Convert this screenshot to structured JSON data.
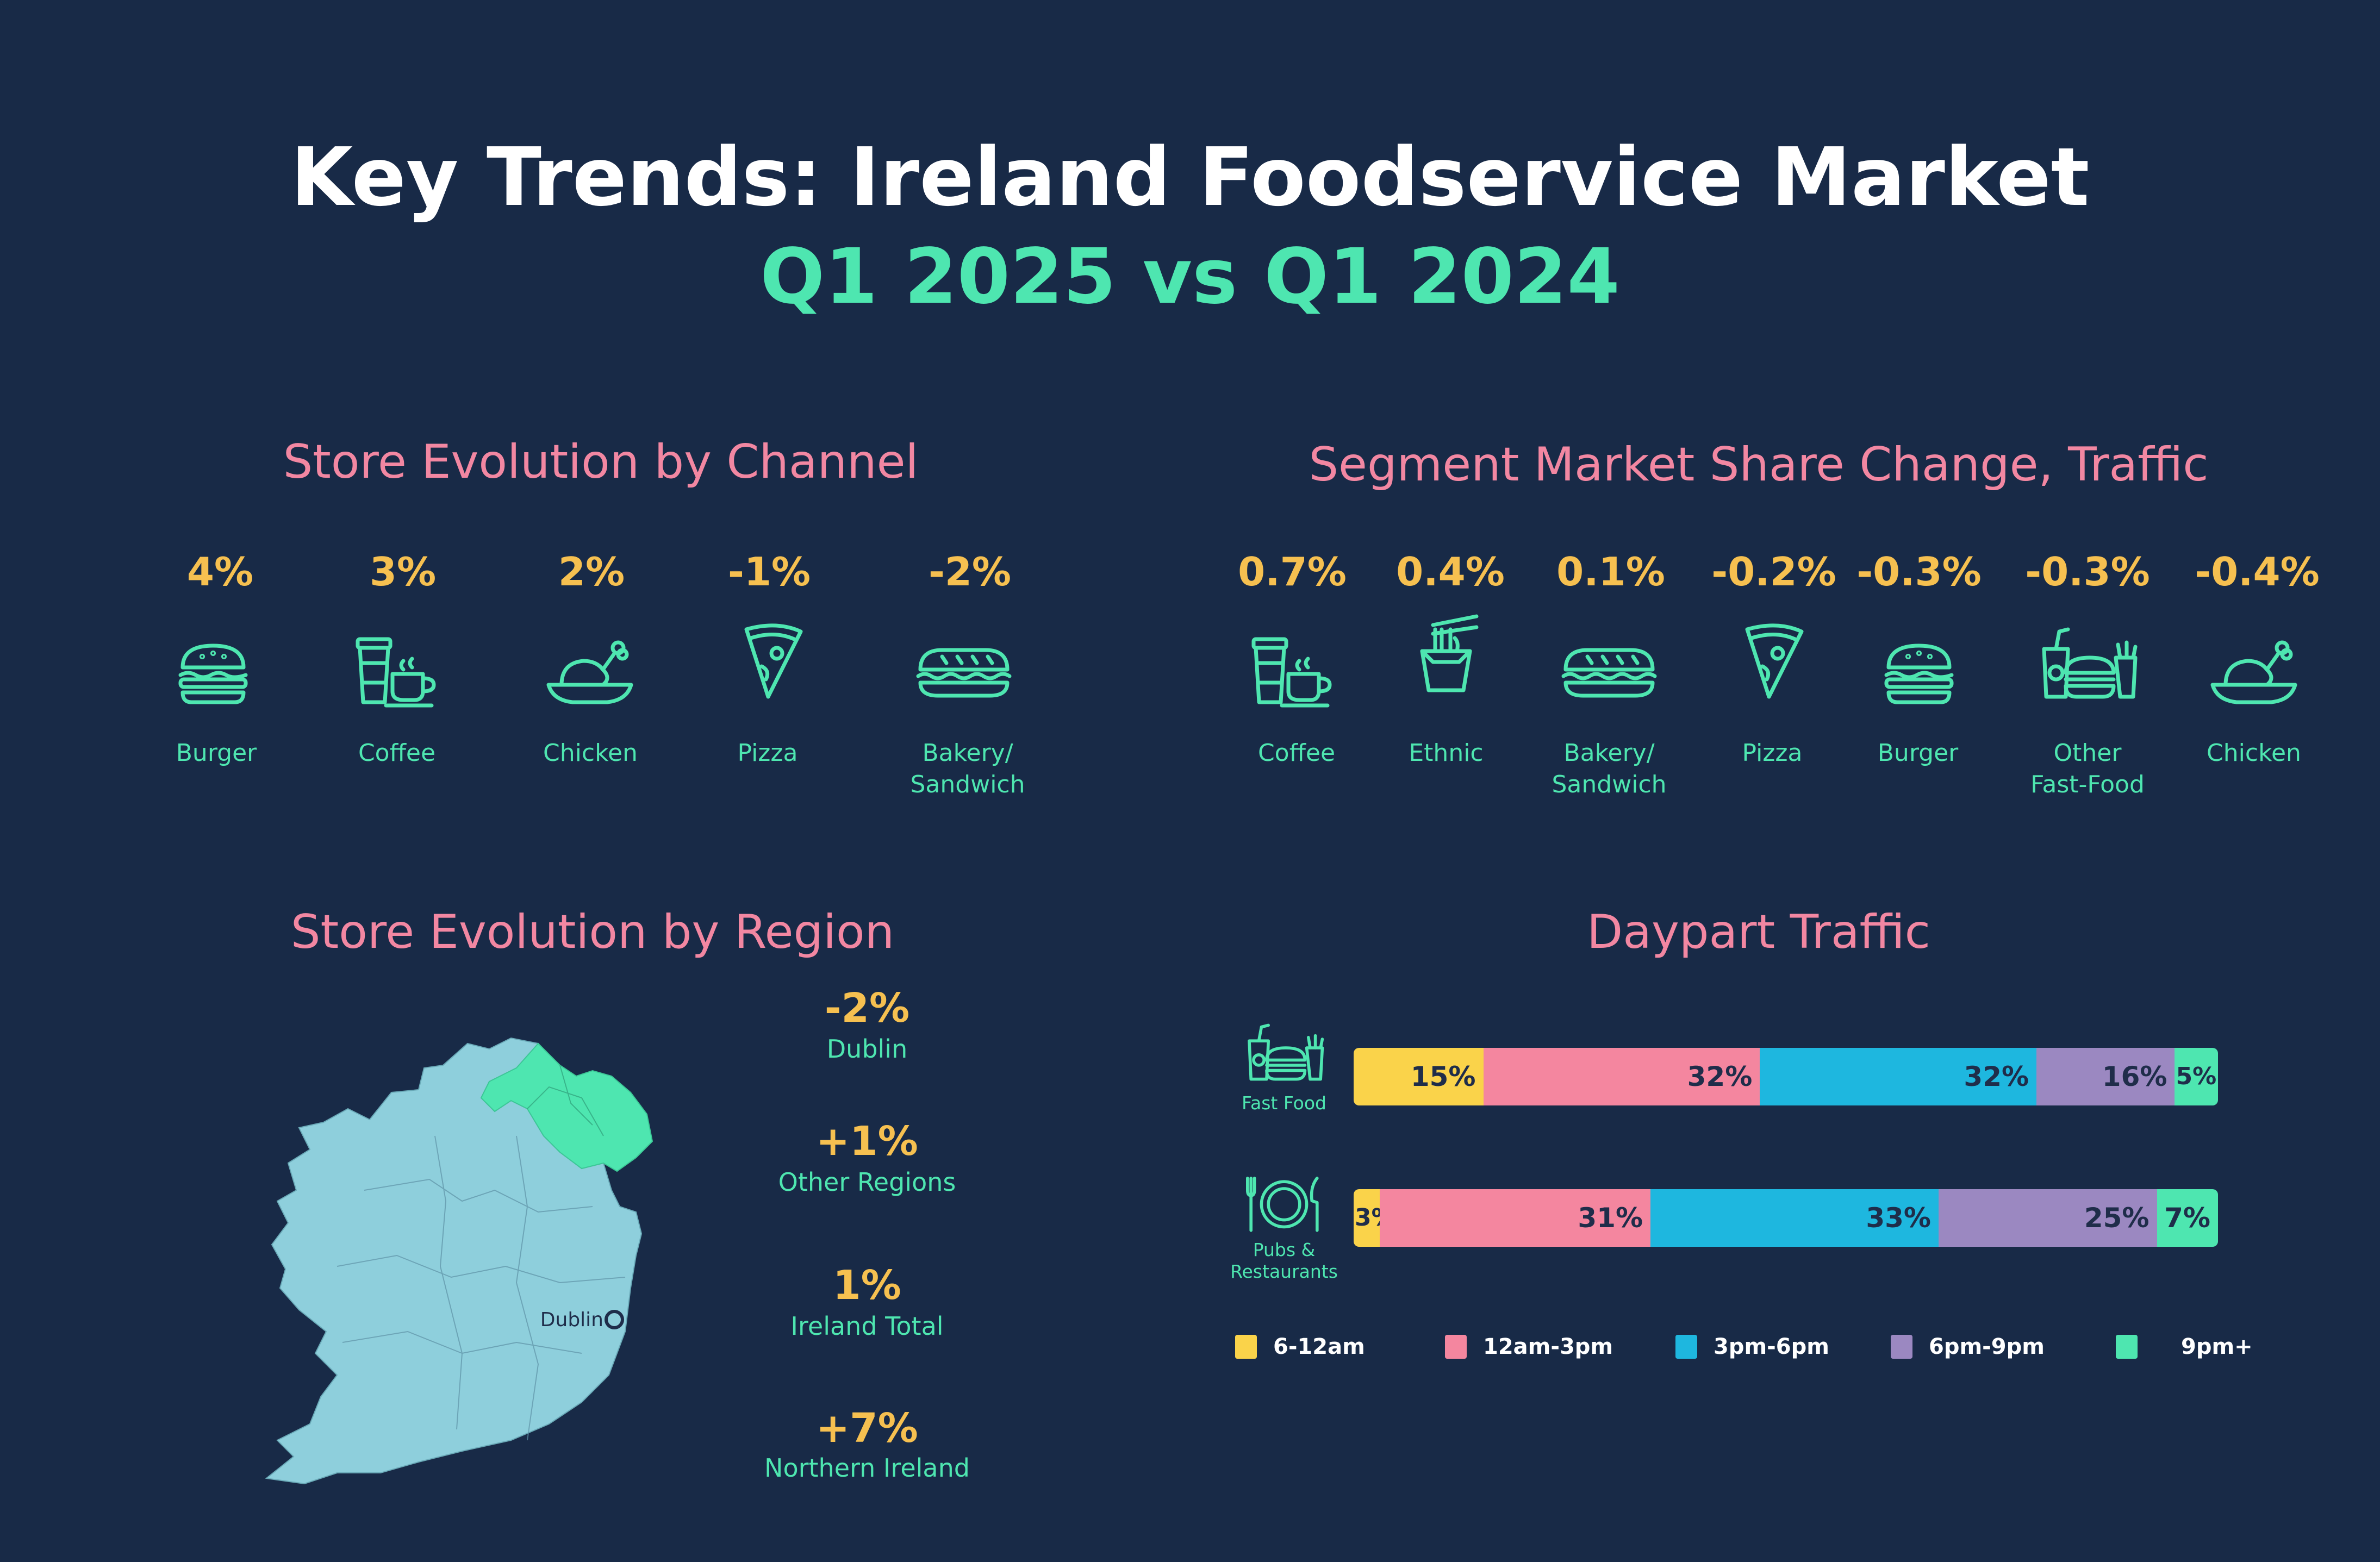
{
  "header": {
    "title": "Key Trends: Ireland Foodservice Market",
    "subtitle": "Q1 2025 vs Q1 2024"
  },
  "store_channel": {
    "title": "Store Evolution by Channel",
    "items": [
      {
        "value": "4%",
        "label": "Burger",
        "icon": "burger-icon"
      },
      {
        "value": "3%",
        "label": "Coffee",
        "icon": "coffee-icon"
      },
      {
        "value": "2%",
        "label": "Chicken",
        "icon": "chicken-icon"
      },
      {
        "value": "-1%",
        "label": "Pizza",
        "icon": "pizza-icon"
      },
      {
        "value": "-2%",
        "label": "Bakery/\nSandwich",
        "icon": "sandwich-icon"
      }
    ]
  },
  "segment_share": {
    "title": "Segment Market Share Change, Traffic",
    "items": [
      {
        "value": "0.7%",
        "label": "Coffee",
        "icon": "coffee-icon"
      },
      {
        "value": "0.4%",
        "label": "Ethnic",
        "icon": "noodle-box-icon"
      },
      {
        "value": "0.1%",
        "label": "Bakery/\nSandwich",
        "icon": "sandwich-icon"
      },
      {
        "value": "-0.2%",
        "label": "Pizza",
        "icon": "pizza-icon"
      },
      {
        "value": "-0.3%",
        "label": "Burger",
        "icon": "burger-icon"
      },
      {
        "value": "-0.3%",
        "label": "Other\nFast-Food",
        "icon": "fast-food-icon"
      },
      {
        "value": "-0.4%",
        "label": "Chicken",
        "icon": "chicken-icon"
      }
    ]
  },
  "region": {
    "title": "Store Evolution by Region",
    "map_label": "Dublin",
    "items": [
      {
        "value": "-2%",
        "label": "Dublin"
      },
      {
        "value": "+1%",
        "label": "Other Regions"
      },
      {
        "value": "1%",
        "label": "Ireland Total"
      },
      {
        "value": "+7%",
        "label": "Northern Ireland"
      }
    ],
    "colors": {
      "ireland": "#8ecfdc",
      "northern_ireland": "#4ee6b0"
    }
  },
  "daypart": {
    "title": "Daypart Traffic",
    "rows": [
      {
        "label": "Fast Food",
        "icon": "fast-food-icon"
      },
      {
        "label": "Pubs &\nRestaurants",
        "icon": "plate-cutlery-icon"
      }
    ],
    "legend": [
      "6-12am",
      "12am-3pm",
      "3pm-6pm",
      "6pm-9pm",
      "9pm+"
    ]
  },
  "chart_data": {
    "type": "bar",
    "stacked": true,
    "orientation": "horizontal",
    "title": "Daypart Traffic",
    "categories": [
      "Fast Food",
      "Pubs & Restaurants"
    ],
    "series": [
      {
        "name": "6-12am",
        "values": [
          15,
          3
        ],
        "color": "#fad34a"
      },
      {
        "name": "12am-3pm",
        "values": [
          32,
          31
        ],
        "color": "#f4869f"
      },
      {
        "name": "3pm-6pm",
        "values": [
          32,
          33
        ],
        "color": "#1eb7df"
      },
      {
        "name": "6pm-9pm",
        "values": [
          16,
          25
        ],
        "color": "#9b88c1"
      },
      {
        "name": "9pm+",
        "values": [
          5,
          7
        ],
        "color": "#4ee6b0"
      }
    ],
    "legend_position": "bottom"
  }
}
